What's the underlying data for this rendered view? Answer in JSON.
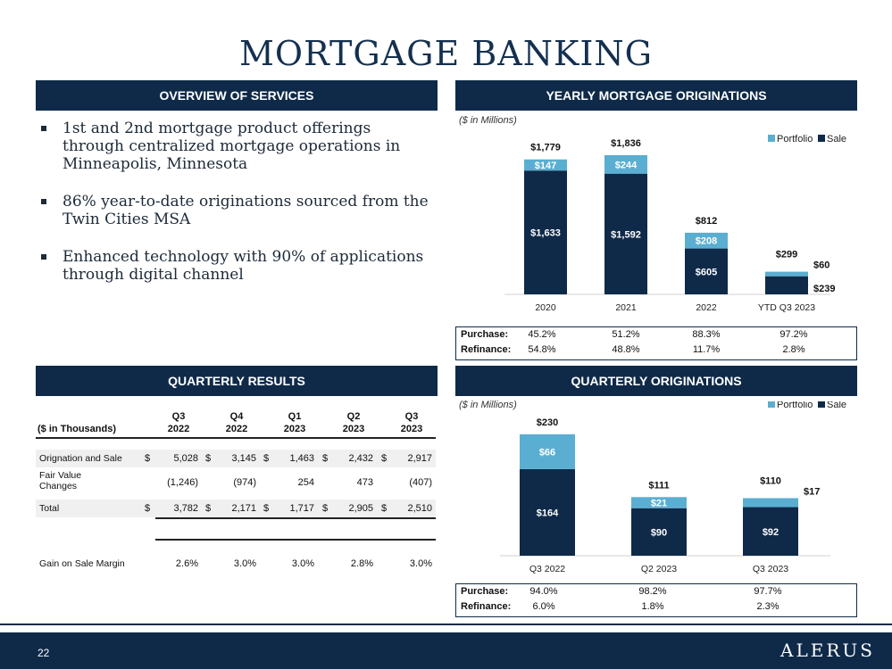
{
  "title": "MORTGAGE BANKING",
  "sections": {
    "overview": "OVERVIEW OF SERVICES",
    "yearly": "YEARLY MORTGAGE ORIGINATIONS",
    "quarterly_results": "QUARTERLY RESULTS",
    "quarterly_orig": "QUARTERLY ORIGINATIONS"
  },
  "services": [
    "1st and 2nd mortgage product offerings through centralized mortgage operations in Minneapolis, Minnesota",
    "86% year-to-date originations sourced from the Twin Cities MSA",
    "Enhanced technology with 90% of applications through digital channel"
  ],
  "unit_note": "($ in Millions)",
  "colors": {
    "navy": "#0f2a49",
    "portfolio": "#5aaed1",
    "sale": "#0f2a49"
  },
  "chart_data": [
    {
      "type": "bar",
      "stacked": true,
      "categories": [
        "2020",
        "2021",
        "2022",
        "YTD Q3 2023"
      ],
      "series": [
        {
          "name": "Sale",
          "values": [
            1633,
            1592,
            605,
            239
          ],
          "labels": [
            "$1,633",
            "$1,592",
            "$605",
            "$239"
          ]
        },
        {
          "name": "Portfolio",
          "values": [
            147,
            244,
            208,
            60
          ],
          "labels": [
            "$147",
            "$244",
            "$208",
            "$60"
          ]
        }
      ],
      "totals": [
        "$1,779",
        "$1,836",
        "$812",
        "$299"
      ],
      "ylim": [
        0,
        2000
      ],
      "legend": "top-right"
    },
    {
      "type": "bar",
      "stacked": true,
      "categories": [
        "Q3 2022",
        "Q2 2023",
        "Q3 2023"
      ],
      "series": [
        {
          "name": "Sale",
          "values": [
            164,
            90,
            92
          ],
          "labels": [
            "$164",
            "$90",
            "$92"
          ]
        },
        {
          "name": "Portfolio",
          "values": [
            66,
            21,
            17
          ],
          "labels": [
            "$66",
            "$21",
            "$17"
          ]
        }
      ],
      "totals": [
        "$230",
        "$111",
        "$110"
      ],
      "ylim": [
        0,
        250
      ],
      "legend": "top-right"
    }
  ],
  "yearly_mix": {
    "purchase_label": "Purchase:",
    "refinance_label": "Refinance:",
    "purchase": [
      "45.2%",
      "51.2%",
      "88.3%",
      "97.2%"
    ],
    "refinance": [
      "54.8%",
      "48.8%",
      "11.7%",
      "2.8%"
    ]
  },
  "quarterly_mix": {
    "purchase_label": "Purchase:",
    "refinance_label": "Refinance:",
    "purchase": [
      "94.0%",
      "98.2%",
      "97.7%"
    ],
    "refinance": [
      "6.0%",
      "1.8%",
      "2.3%"
    ]
  },
  "results_table": {
    "unit_label": "($ in Thousands)",
    "headers": [
      [
        "Q3",
        "2022"
      ],
      [
        "Q4",
        "2022"
      ],
      [
        "Q1",
        "2023"
      ],
      [
        "Q2",
        "2023"
      ],
      [
        "Q3",
        "2023"
      ]
    ],
    "rows": [
      {
        "label": "Orignation and Sale",
        "dollar": true,
        "values": [
          "5,028",
          "3,145",
          "1,463",
          "2,432",
          "2,917"
        ]
      },
      {
        "label": "Fair Value Changes",
        "dollar": false,
        "values": [
          "(1,246)",
          "(974)",
          "254",
          "473",
          "(407)"
        ]
      },
      {
        "label": "Total",
        "dollar": true,
        "values": [
          "3,782",
          "2,171",
          "1,717",
          "2,905",
          "2,510"
        ]
      },
      {
        "label": "Gain on Sale Margin",
        "dollar": false,
        "values": [
          "2.6%",
          "3.0%",
          "3.0%",
          "2.8%",
          "3.0%"
        ]
      }
    ]
  },
  "footer": {
    "page": "22",
    "logo": "ALERUS"
  }
}
